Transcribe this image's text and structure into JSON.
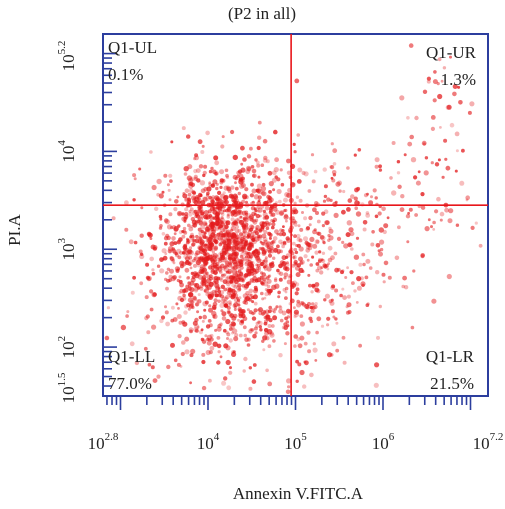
{
  "chart_data": {
    "type": "scatter",
    "title": "(P2 in all)",
    "xlabel": "Annexin V.FITC.A",
    "ylabel": "PI.A",
    "x_scale": "log10",
    "y_scale": "log10",
    "xlim_log10": [
      2.8,
      7.2
    ],
    "ylim_log10": [
      1.5,
      5.2
    ],
    "x_ticks": [
      {
        "base": "10",
        "exp": "2.8",
        "log": 2.8
      },
      {
        "base": "10",
        "exp": "4",
        "log": 4
      },
      {
        "base": "10",
        "exp": "5",
        "log": 5
      },
      {
        "base": "10",
        "exp": "6",
        "log": 6
      },
      {
        "base": "10",
        "exp": "7.2",
        "log": 7.2
      }
    ],
    "y_ticks": [
      {
        "base": "10",
        "exp": "1.5",
        "log": 1.5
      },
      {
        "base": "10",
        "exp": "2",
        "log": 2
      },
      {
        "base": "10",
        "exp": "3",
        "log": 3
      },
      {
        "base": "10",
        "exp": "4",
        "log": 4
      },
      {
        "base": "10",
        "exp": "5.2",
        "log": 5.2
      }
    ],
    "gate_x_log10": 4.95,
    "gate_y_log10": 3.45,
    "quadrants": [
      {
        "name": "Q1-UL",
        "percent": "0.1%",
        "position": "top-left"
      },
      {
        "name": "Q1-UR",
        "percent": "1.3%",
        "position": "top-right"
      },
      {
        "name": "Q1-LL",
        "percent": "77.0%",
        "position": "bottom-left"
      },
      {
        "name": "Q1-LR",
        "percent": "21.5%",
        "position": "bottom-right"
      }
    ],
    "point_color": "#e31a1c",
    "gate_color": "#e8161b",
    "axis_color": "#2c3e9e",
    "grid": false
  }
}
